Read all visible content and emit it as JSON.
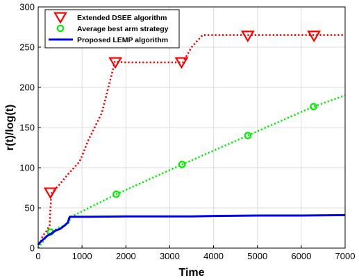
{
  "chart_data": {
    "type": "line",
    "title": "",
    "xlabel": "Time",
    "ylabel": "r(t)/log(t)",
    "xlim": [
      0,
      7000
    ],
    "ylim": [
      0,
      300
    ],
    "x_ticks": [
      0,
      1000,
      2000,
      3000,
      4000,
      5000,
      6000,
      7000
    ],
    "y_ticks": [
      0,
      50,
      100,
      150,
      200,
      250,
      300
    ],
    "grid": true,
    "legend_position": "top-left",
    "series": [
      {
        "name": "Extended DSEE algorithm",
        "color": "#ff0000",
        "style": "dotted",
        "marker": "triangle-down",
        "x": [
          0,
          100,
          200,
          260,
          300,
          500,
          700,
          950,
          1150,
          1450,
          1750,
          2000,
          2500,
          3000,
          3300,
          3500,
          3750,
          4200,
          4800,
          5500,
          6300,
          7000
        ],
        "y": [
          0,
          15,
          22,
          28,
          68,
          80,
          93,
          108,
          135,
          168,
          232,
          231,
          231,
          231,
          231,
          250,
          265,
          265,
          265,
          265,
          265,
          265
        ],
        "marker_x": [
          280,
          1760,
          3270,
          4780,
          6290
        ],
        "marker_y": [
          69,
          231,
          231,
          264,
          264
        ]
      },
      {
        "name": "Average best arm strategy",
        "color": "#00ee00",
        "style": "dotted",
        "marker": "circle",
        "x": [
          0,
          200,
          300,
          450,
          680,
          750,
          1780,
          3280,
          4780,
          6280,
          7000
        ],
        "y": [
          0,
          15,
          20,
          25,
          30,
          39,
          67,
          104,
          140,
          176,
          190
        ],
        "marker_x": [
          280,
          1780,
          3280,
          4780,
          6280
        ],
        "marker_y": [
          20,
          67,
          104,
          140,
          176
        ]
      },
      {
        "name": "Proposed LEMP algorithm",
        "color": "#0000ee",
        "style": "solid",
        "marker": "none",
        "x": [
          0,
          20,
          60,
          120,
          200,
          300,
          400,
          500,
          600,
          680,
          700,
          720,
          1000,
          2000,
          3000,
          3500,
          4000,
          5000,
          6000,
          7000
        ],
        "y": [
          4,
          6,
          8,
          11,
          15,
          18,
          22,
          24,
          28,
          32,
          36,
          39,
          39,
          39.5,
          39.5,
          39.5,
          40,
          40.5,
          40.5,
          41
        ],
        "marker_x": [],
        "marker_y": []
      }
    ]
  }
}
